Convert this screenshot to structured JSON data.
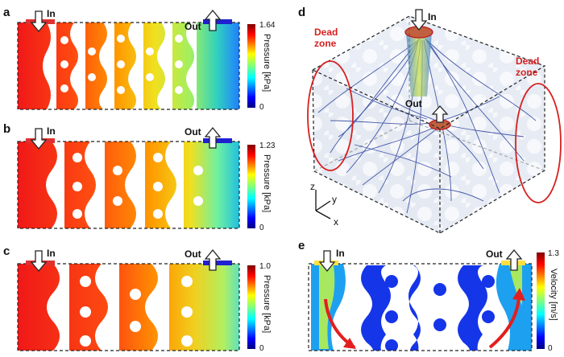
{
  "panels": {
    "a": {
      "label": "a",
      "in_label": "In",
      "out_label": "Out",
      "cbar_max": "1.64",
      "cbar_min": "0",
      "cbar_title": "Pressure [kPa]"
    },
    "b": {
      "label": "b",
      "in_label": "In",
      "out_label": "Out",
      "cbar_max": "1.23",
      "cbar_min": "0",
      "cbar_title": "Pressure [kPa]"
    },
    "c": {
      "label": "c",
      "in_label": "In",
      "out_label": "Out",
      "cbar_max": "1.0",
      "cbar_min": "0",
      "cbar_title": "Pressure [kPa]"
    },
    "d": {
      "label": "d",
      "in_label": "In",
      "out_label": "Out",
      "dead_zone_line1": "Dead",
      "dead_zone_line2": "zone",
      "axis_z": "z",
      "axis_y": "y",
      "axis_x": "x"
    },
    "e": {
      "label": "e",
      "in_label": "In",
      "out_label": "Out",
      "cbar_max": "1.3",
      "cbar_min": "0",
      "cbar_title": "Velocity [m/s]"
    }
  },
  "colors": {
    "jet": [
      "#00007f",
      "#0000ff",
      "#0080ff",
      "#00ffff",
      "#80ff80",
      "#ffff00",
      "#ff8000",
      "#ff0000",
      "#7f0000"
    ],
    "dead_zone": "#d62020",
    "streamline": "#2a3f9c"
  }
}
